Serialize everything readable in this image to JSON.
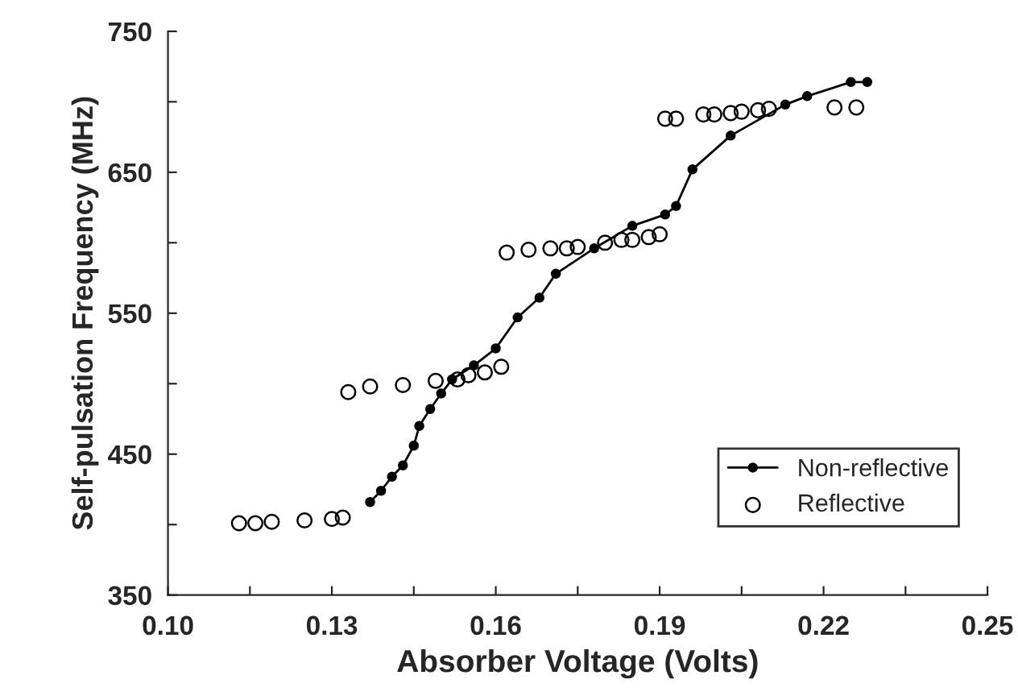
{
  "chart_data": {
    "type": "line",
    "xlabel": "Absorber Voltage (Volts)",
    "ylabel": "Self-pulsation Frequency (MHz)",
    "xlim": [
      0.1,
      0.25
    ],
    "ylim": [
      350,
      750
    ],
    "xticks": [
      {
        "value": 0.1,
        "label": "0.10"
      },
      {
        "value": 0.115,
        "label": null
      },
      {
        "value": 0.13,
        "label": "0.13"
      },
      {
        "value": 0.145,
        "label": null
      },
      {
        "value": 0.16,
        "label": "0.16"
      },
      {
        "value": 0.175,
        "label": null
      },
      {
        "value": 0.19,
        "label": "0.19"
      },
      {
        "value": 0.205,
        "label": null
      },
      {
        "value": 0.22,
        "label": "0.22"
      },
      {
        "value": 0.235,
        "label": null
      },
      {
        "value": 0.25,
        "label": "0.25"
      }
    ],
    "yticks": [
      350,
      {
        "value": 400,
        "label": null
      },
      450,
      {
        "value": 500,
        "label": null
      },
      550,
      {
        "value": 600,
        "label": null
      },
      650,
      {
        "value": 700,
        "label": null
      },
      750
    ],
    "grid": false,
    "legend": "bottom right",
    "series": [
      {
        "name": "Non-reflective",
        "marker": "circle",
        "color": "#000000",
        "x": [
          0.137,
          0.139,
          0.141,
          0.143,
          0.145,
          0.146,
          0.148,
          0.15,
          0.152,
          0.156,
          0.16,
          0.164,
          0.168,
          0.171,
          0.178,
          0.185,
          0.191,
          0.193,
          0.196,
          0.203,
          0.213,
          0.217,
          0.225,
          0.228
        ],
        "values": [
          416,
          424,
          434,
          442,
          456,
          470,
          482,
          493,
          503,
          513,
          525,
          547,
          561,
          578,
          596,
          612,
          620,
          626,
          652,
          676,
          698,
          704,
          714,
          714
        ]
      },
      {
        "name": "Reflective",
        "type": "scatter",
        "marker": "circle",
        "color": "#000000",
        "x": [
          0.113,
          0.116,
          0.119,
          0.125,
          0.13,
          0.132,
          0.133,
          0.137,
          0.143,
          0.149,
          0.153,
          0.155,
          0.158,
          0.161,
          0.162,
          0.166,
          0.17,
          0.173,
          0.175,
          0.18,
          0.183,
          0.185,
          0.188,
          0.19,
          0.191,
          0.193,
          0.198,
          0.2,
          0.203,
          0.205,
          0.208,
          0.21,
          0.222,
          0.226
        ],
        "values": [
          401,
          401,
          402,
          403,
          404,
          405,
          494,
          498,
          499,
          502,
          503,
          506,
          508,
          512,
          593,
          595,
          596,
          596,
          597,
          600,
          602,
          602,
          604,
          606,
          688,
          688,
          691,
          691,
          692,
          693,
          694,
          695,
          696,
          696
        ]
      }
    ]
  }
}
